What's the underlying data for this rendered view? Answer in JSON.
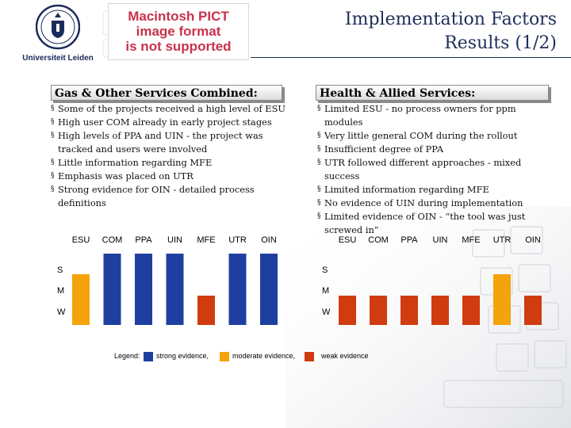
{
  "logo": {
    "text": "Universiteit Leiden"
  },
  "placeholder_image": {
    "lines": [
      "Macintosh PICT",
      "image format",
      "is not supported"
    ]
  },
  "title": {
    "line1": "Implementation Factors",
    "line2": "Results (1/2)"
  },
  "left_panel": {
    "heading": "Gas & Other Services Combined:",
    "bullets": [
      "Some of the projects received a high level of ESU",
      "High user COM already in early project stages",
      "High levels of PPA and UIN - the project was tracked and users were involved",
      "Little information regarding MFE",
      "Emphasis was placed on UTR",
      "Strong evidence for OIN - detailed process definitions"
    ]
  },
  "right_panel": {
    "heading": "Health & Allied Services:",
    "bullets": [
      "Limited ESU - no process owners for ppm modules",
      "Very little general COM during the rollout",
      "Insufficient degree of PPA",
      "UTR followed different approaches - mixed success",
      "Limited information regarding MFE",
      "No evidence of UIN during implementation",
      "Limited evidence of OIN - “the tool was just screwed in”"
    ]
  },
  "colors": {
    "strong": "#1f3fa0",
    "moderate": "#f5a30a",
    "weak": "#d03c10",
    "navy": "#1f2f5a"
  },
  "chart_data": [
    {
      "type": "bar",
      "categories": [
        "ESU",
        "COM",
        "PPA",
        "UIN",
        "MFE",
        "UTR",
        "OIN"
      ],
      "y_levels": [
        "S",
        "M",
        "W"
      ],
      "values": [
        "M",
        "S",
        "S",
        "S",
        "W",
        "S",
        "S"
      ],
      "evidence": [
        "moderate",
        "strong",
        "strong",
        "strong",
        "weak",
        "strong",
        "strong"
      ]
    },
    {
      "type": "bar",
      "categories": [
        "ESU",
        "COM",
        "PPA",
        "UIN",
        "MFE",
        "UTR",
        "OIN"
      ],
      "y_levels": [
        "S",
        "M",
        "W"
      ],
      "values": [
        "W",
        "W",
        "W",
        "W",
        "W",
        "M",
        "W"
      ],
      "evidence": [
        "weak",
        "weak",
        "weak",
        "weak",
        "weak",
        "moderate",
        "weak"
      ]
    }
  ],
  "legend": {
    "label": "Legend:",
    "items": [
      {
        "key": "strong",
        "text": "strong evidence,"
      },
      {
        "key": "moderate",
        "text": "moderate evidence,"
      },
      {
        "key": "weak",
        "text": "weak evidence"
      }
    ]
  }
}
